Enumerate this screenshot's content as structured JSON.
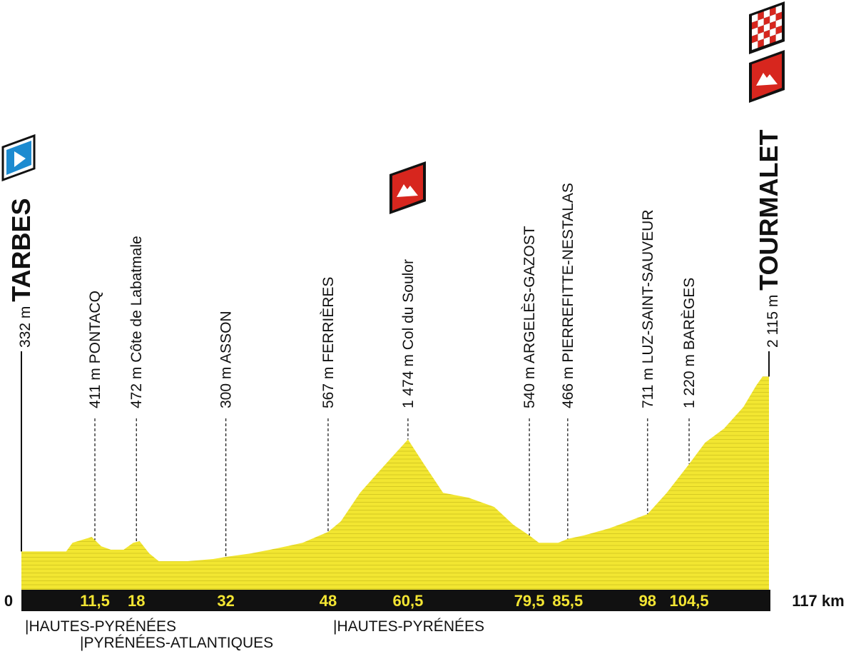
{
  "chart_data": {
    "type": "profile",
    "x": [
      0,
      7,
      8,
      10,
      11,
      12.5,
      14,
      16,
      17.5,
      18.5,
      20,
      21.5,
      26,
      30,
      32,
      36,
      40,
      44,
      48,
      50,
      53,
      56,
      58,
      60.5,
      63,
      66,
      70,
      74,
      77,
      79.5,
      81,
      84,
      85.5,
      88,
      92,
      95,
      98,
      101,
      104.5,
      107,
      110,
      113,
      115,
      116,
      117
    ],
    "values": [
      332,
      332,
      420,
      460,
      480,
      385,
      350,
      350,
      420,
      437,
      313,
      233,
      233,
      255,
      277,
      313,
      364,
      420,
      531,
      640,
      930,
      1150,
      1295,
      1474,
      1223,
      930,
      880,
      786,
      604,
      495,
      420,
      420,
      460,
      495,
      568,
      640,
      713,
      930,
      1223,
      1441,
      1587,
      1805,
      2023,
      2115,
      2115
    ],
    "xlim": [
      0,
      117
    ],
    "ylim": [
      0,
      2500
    ],
    "color": "#f2e631",
    "waypoints": {
      "km": [
        0,
        11.5,
        18,
        32,
        48,
        60.5,
        79.5,
        85.5,
        98,
        104.5,
        117
      ],
      "km_labels": [
        "0",
        "11,5",
        "18",
        "32",
        "48",
        "60,5",
        "79,5",
        "85,5",
        "98",
        "104,5",
        "117 km"
      ],
      "altitudes": [
        332,
        411,
        472,
        300,
        567,
        1474,
        540,
        466,
        711,
        1220,
        2115
      ],
      "altitude_labels": [
        "332 m",
        "411 m",
        "472 m",
        "300 m",
        "567 m",
        "1 474 m",
        "540 m",
        "466 m",
        "711 m",
        "1 220 m",
        "2 115 m"
      ],
      "names": [
        "TARBES",
        "PONTACQ",
        "Côte de Labatmale",
        "ASSON",
        "FERRIÈRES",
        "Col du Soulor",
        "ARGELÈS-GAZOST",
        "PIERREFITTE-NESTALAS",
        "LUZ-SAINT-SAUVEUR",
        "BARÈGES",
        "TOURMALET"
      ]
    },
    "regions": [
      "|HAUTES-PYRÉNÉES",
      "|PYRÉNÉES-ATLANTIQUES",
      "|HAUTES-PYRÉNÉES"
    ]
  }
}
